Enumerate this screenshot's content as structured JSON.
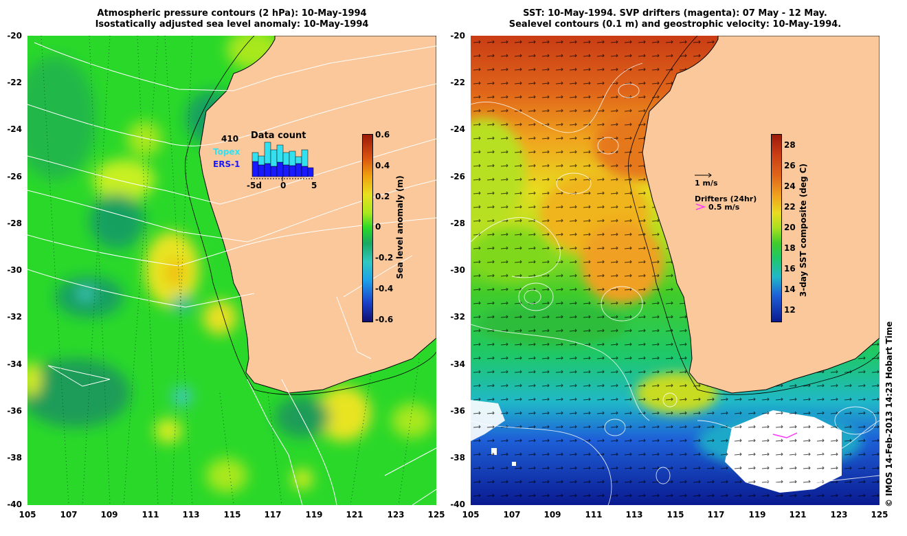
{
  "left_panel": {
    "title_line1": "Atmospheric pressure contours (2 hPa): 10-May-1994",
    "title_line2": "Isostatically adjusted sea level anomaly: 10-May-1994",
    "y_ticks": [
      "-20",
      "-22",
      "-24",
      "-26",
      "-28",
      "-30",
      "-32",
      "-34",
      "-36",
      "-38",
      "-40"
    ],
    "x_ticks": [
      "105",
      "107",
      "109",
      "111",
      "113",
      "115",
      "117",
      "119",
      "121",
      "123",
      "125"
    ],
    "colorbar": {
      "title": "Sea level anomaly (m)",
      "labels": [
        "0.6",
        "0.4",
        "0.2",
        "0",
        "-0.2",
        "-0.4",
        "-0.6"
      ],
      "range": [
        -0.6,
        0.6
      ]
    },
    "data_count": {
      "value": "410",
      "title": "Data count",
      "topex_label": "Topex",
      "ers_label": "ERS-1",
      "x_labels": [
        "-5d",
        "0",
        "5"
      ],
      "topex_color": "#33e0f0",
      "ers_color": "#1a1aff"
    }
  },
  "right_panel": {
    "title_line1": "SST: 10-May-1994. SVP drifters (magenta): 07 May - 12 May.",
    "title_line2": "Sealevel contours (0.1 m) and geostrophic velocity: 10-May-1994.",
    "y_ticks": [
      "-20",
      "-22",
      "-24",
      "-26",
      "-28",
      "-30",
      "-32",
      "-34",
      "-36",
      "-38",
      "-40"
    ],
    "x_ticks": [
      "105",
      "107",
      "109",
      "111",
      "113",
      "115",
      "117",
      "119",
      "121",
      "123",
      "125"
    ],
    "colorbar": {
      "title": "3-day SST composite (deg C)",
      "labels": [
        "28",
        "26",
        "24",
        "22",
        "20",
        "18",
        "16",
        "14",
        "12"
      ],
      "range": [
        11,
        29
      ]
    },
    "velocity_key": "1 m/s",
    "drifters_title": "Drifters (24hr)",
    "drifters_key": "0.5 m/s",
    "drifter_color": "#ff33ff"
  },
  "credit": "© IMOS 14-Feb-2013 14:23 Hobart Time",
  "colors": {
    "land": "#fac89b",
    "ocean_sla_base": "#2ee02a",
    "sst_warm": "#c83c14"
  }
}
